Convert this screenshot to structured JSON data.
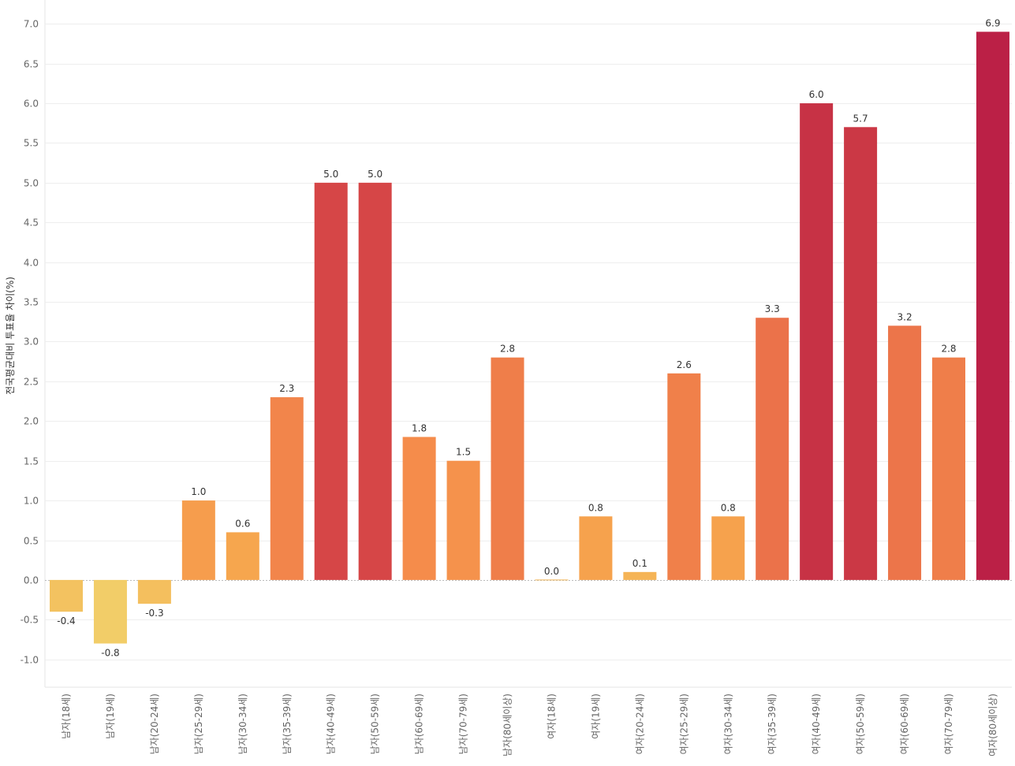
{
  "chart_data": {
    "type": "bar",
    "title": "",
    "xlabel": "",
    "ylabel": "전국평균대비 투표율 차이(%)",
    "ylim": [
      -1.35,
      7.3
    ],
    "yticks": [
      -1.0,
      -0.5,
      0.0,
      0.5,
      1.0,
      1.5,
      2.0,
      2.5,
      3.0,
      3.5,
      4.0,
      4.5,
      5.0,
      5.5,
      6.0,
      6.5,
      7.0
    ],
    "ytick_labels": [
      "-1.0",
      "-0.5",
      "0.0",
      "0.5",
      "1.0",
      "1.5",
      "2.0",
      "2.5",
      "3.0",
      "3.5",
      "4.0",
      "4.5",
      "5.0",
      "5.5",
      "6.0",
      "6.5",
      "7.0"
    ],
    "grid": true,
    "categories": [
      "남자(18세)",
      "남자(19세)",
      "남자(20-24세)",
      "남자(25-29세)",
      "남자(30-34세)",
      "남자(35-39세)",
      "남자(40-49세)",
      "남자(50-59세)",
      "남자(60-69세)",
      "남자(70-79세)",
      "남자(80세이상)",
      "여자(18세)",
      "여자(19세)",
      "여자(20-24세)",
      "여자(25-29세)",
      "여자(30-34세)",
      "여자(35-39세)",
      "여자(40-49세)",
      "여자(50-59세)",
      "여자(60-69세)",
      "여자(70-79세)",
      "여자(80세이상)"
    ],
    "values": [
      -0.4,
      -0.8,
      -0.3,
      1.0,
      0.6,
      2.3,
      5.0,
      5.0,
      1.8,
      1.5,
      2.8,
      0.0,
      0.8,
      0.1,
      2.6,
      0.8,
      3.3,
      6.0,
      5.7,
      3.2,
      2.8,
      6.9
    ],
    "value_labels": [
      "-0.4",
      "-0.8",
      "-0.3",
      "1.0",
      "0.6",
      "2.3",
      "5.0",
      "5.0",
      "1.8",
      "1.5",
      "2.8",
      "0.0",
      "0.8",
      "0.1",
      "2.6",
      "0.8",
      "3.3",
      "6.0",
      "5.7",
      "3.2",
      "2.8",
      "6.9"
    ],
    "color_scale": {
      "domain_min": -0.8,
      "domain_max": 6.9,
      "stops": [
        "#f2cd68",
        "#f6a94e",
        "#f58c4b",
        "#ee7a4a",
        "#e0534a",
        "#cc3a45",
        "#bb2046"
      ]
    },
    "baseline_color": "#bbbbbb",
    "grid_color": "#eeeeee"
  }
}
